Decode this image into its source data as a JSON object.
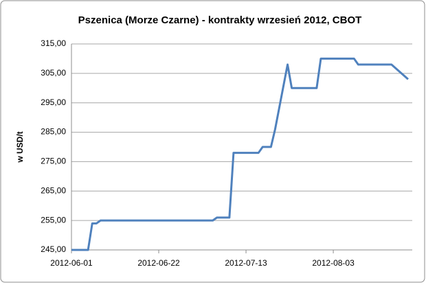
{
  "chart_data": {
    "type": "line",
    "title": "Pszenica (Morze Czarne) - kontrakty wrzesień 2012, CBOT",
    "y_label": "w USD/t",
    "x": [
      "2012-06-01",
      "2012-06-05",
      "2012-06-06",
      "2012-06-07",
      "2012-06-08",
      "2012-07-05",
      "2012-07-06",
      "2012-07-09",
      "2012-07-10",
      "2012-07-16",
      "2012-07-17",
      "2012-07-19",
      "2012-07-20",
      "2012-07-23",
      "2012-07-24",
      "2012-07-30",
      "2012-07-31",
      "2012-08-08",
      "2012-08-09",
      "2012-08-17",
      "2012-08-21"
    ],
    "values": [
      245,
      245,
      254,
      254,
      255,
      255,
      256,
      256,
      278,
      278,
      280,
      280,
      286,
      308,
      300,
      300,
      310,
      310,
      308,
      308,
      303
    ],
    "color": "#4f81bd",
    "xlim": [
      "2012-06-01",
      "2012-08-22"
    ],
    "xticks": [
      "2012-06-01",
      "2012-06-22",
      "2012-07-13",
      "2012-08-03"
    ],
    "ylim": [
      245,
      315
    ],
    "yticks": [
      {
        "value": 245,
        "label": "245,00"
      },
      {
        "value": 255,
        "label": "255,00"
      },
      {
        "value": 265,
        "label": "265,00"
      },
      {
        "value": 275,
        "label": "275,00"
      },
      {
        "value": 285,
        "label": "285,00"
      },
      {
        "value": 295,
        "label": "295,00"
      },
      {
        "value": 305,
        "label": "305,00"
      },
      {
        "value": 315,
        "label": "315,00"
      }
    ],
    "grid": true
  }
}
